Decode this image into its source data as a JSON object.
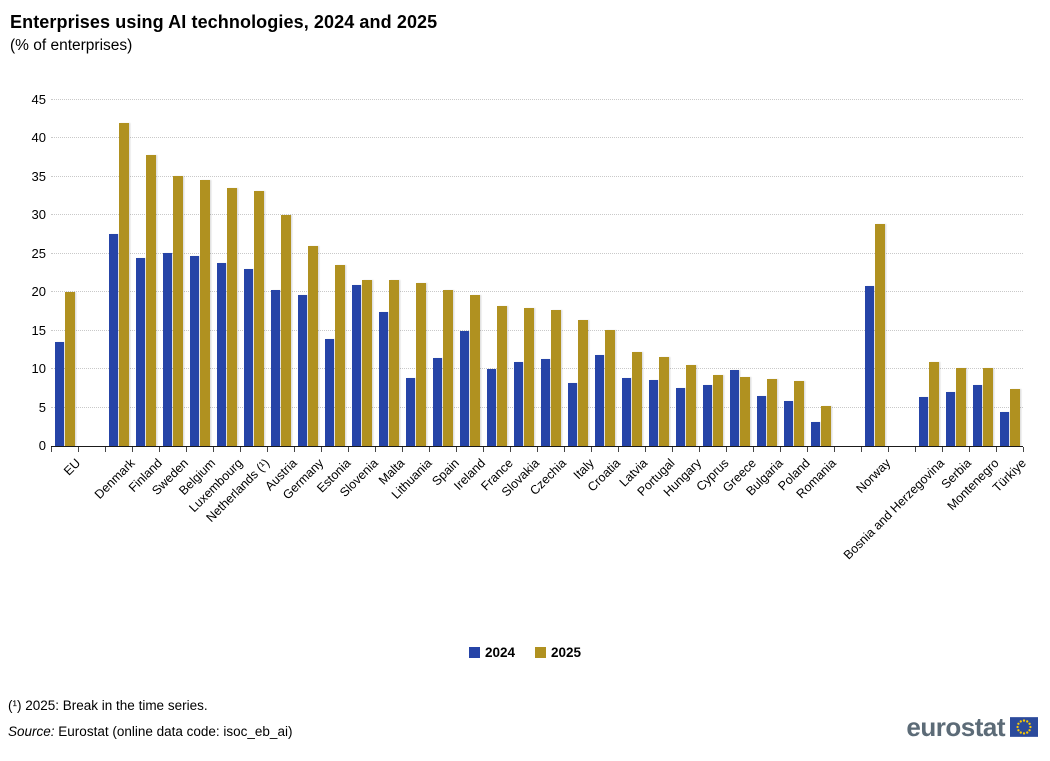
{
  "header": {
    "title": "Enterprises using AI technologies, 2024 and 2025",
    "subtitle": "(% of enterprises)"
  },
  "chart_data": {
    "type": "bar",
    "title": "Enterprises using AI technologies, 2024 and 2025",
    "subtitle": "(% of enterprises)",
    "xlabel": "",
    "ylabel": "",
    "ylim": [
      0,
      45
    ],
    "ytick_step": 5,
    "grid": "horizontal-dotted",
    "legend_position": "bottom-center",
    "categories": [
      "EU",
      "Denmark",
      "Finland",
      "Sweden",
      "Belgium",
      "Luxembourg",
      "Netherlands (¹)",
      "Austria",
      "Germany",
      "Estonia",
      "Slovenia",
      "Malta",
      "Lithuania",
      "Spain",
      "Ireland",
      "France",
      "Slovakia",
      "Czechia",
      "Italy",
      "Croatia",
      "Latvia",
      "Portugal",
      "Hungary",
      "Cyprus",
      "Greece",
      "Bulgaria",
      "Poland",
      "Romania",
      "Norway",
      "Bosnia and Herzegovina",
      "Serbia",
      "Montenegro",
      "Türkiye"
    ],
    "gaps_after": [
      "EU",
      "Romania",
      "Norway"
    ],
    "series": [
      {
        "name": "2024",
        "color": "#2644A7",
        "values": [
          13.5,
          27.6,
          24.4,
          25.1,
          24.7,
          23.8,
          23.0,
          20.3,
          19.7,
          13.9,
          21.0,
          17.4,
          8.8,
          11.4,
          14.9,
          10.0,
          10.9,
          11.3,
          8.2,
          11.8,
          8.8,
          8.6,
          7.5,
          8.0,
          9.9,
          6.5,
          5.9,
          3.1,
          20.8,
          6.4,
          7.0,
          8.0,
          4.4
        ]
      },
      {
        "name": "2025",
        "color": "#B09120",
        "values": [
          20.0,
          42.0,
          37.9,
          35.1,
          34.6,
          33.6,
          33.2,
          30.0,
          26.0,
          23.5,
          21.6,
          21.6,
          21.2,
          20.3,
          19.6,
          18.2,
          18.0,
          17.7,
          16.4,
          15.1,
          12.2,
          11.6,
          10.5,
          9.3,
          9.0,
          8.7,
          8.4,
          5.2,
          28.9,
          10.9,
          10.2,
          10.1,
          7.4
        ]
      }
    ]
  },
  "footer": {
    "note": "(¹) 2025: Break in the time series.",
    "source_label": "Source:",
    "source_text": "Eurostat (online data code: isoc_eb_ai)"
  },
  "logo": {
    "text": "eurostat"
  }
}
